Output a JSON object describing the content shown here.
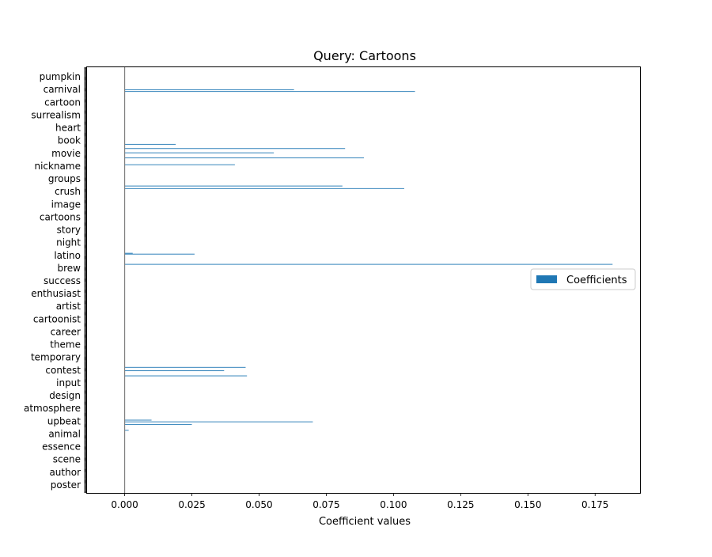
{
  "chart_data": {
    "type": "bar",
    "orientation": "horizontal",
    "title": "Query: Cartoons",
    "xlabel": "Coefficient values",
    "ylabel": "",
    "xlim": [
      -0.014,
      0.192
    ],
    "x_ticks": [
      0.0,
      0.025,
      0.05,
      0.075,
      0.1,
      0.125,
      0.15,
      0.175
    ],
    "x_tick_labels": [
      "0.000",
      "0.025",
      "0.050",
      "0.075",
      "0.100",
      "0.125",
      "0.150",
      "0.175"
    ],
    "bar_color": "#1f77b4",
    "zero_line_color": "#808080",
    "legend": {
      "placement": "center-right",
      "entries": [
        "Coefficients"
      ]
    },
    "grid": false,
    "n_categories": 500,
    "visible_tick_labels": [
      "pumpkin",
      "carnival",
      "cartoon",
      "surrealism",
      "heart",
      "book",
      "movie",
      "nickname",
      "groups",
      "crush",
      "image",
      "cartoons",
      "story",
      "night",
      "latino",
      "brew",
      "success",
      "enthusiast",
      "artist",
      "cartoonist",
      "career",
      "theme",
      "temporary",
      "contest",
      "input",
      "design",
      "atmosphere",
      "upbeat",
      "animal",
      "essence",
      "scene",
      "author",
      "poster"
    ],
    "nonzero_bars": [
      {
        "index": 473,
        "value": 0.063
      },
      {
        "index": 471,
        "value": 0.108
      },
      {
        "index": 409,
        "value": 0.019
      },
      {
        "index": 404,
        "value": 0.082
      },
      {
        "index": 399,
        "value": 0.0555
      },
      {
        "index": 393,
        "value": 0.089
      },
      {
        "index": 385,
        "value": 0.041
      },
      {
        "index": 360,
        "value": 0.081
      },
      {
        "index": 357,
        "value": 0.104
      },
      {
        "index": 281,
        "value": 0.003
      },
      {
        "index": 280,
        "value": 0.026
      },
      {
        "index": 268,
        "value": 0.1815
      },
      {
        "index": 147,
        "value": 0.045
      },
      {
        "index": 143,
        "value": 0.037
      },
      {
        "index": 137,
        "value": 0.0455
      },
      {
        "index": 85,
        "value": 0.01
      },
      {
        "index": 83,
        "value": 0.07
      },
      {
        "index": 80,
        "value": 0.025
      },
      {
        "index": 73,
        "value": 0.0015
      }
    ]
  }
}
